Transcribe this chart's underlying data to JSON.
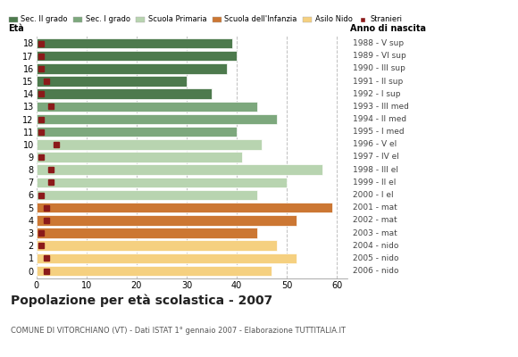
{
  "ages": [
    18,
    17,
    16,
    15,
    14,
    13,
    12,
    11,
    10,
    9,
    8,
    7,
    6,
    5,
    4,
    3,
    2,
    1,
    0
  ],
  "bar_values": [
    39,
    40,
    38,
    30,
    35,
    44,
    48,
    40,
    45,
    41,
    57,
    50,
    44,
    59,
    52,
    44,
    48,
    52,
    47
  ],
  "stranieri_values": [
    1,
    1,
    1,
    2,
    1,
    3,
    1,
    1,
    4,
    1,
    3,
    3,
    1,
    2,
    2,
    1,
    1,
    2,
    2
  ],
  "right_labels": [
    "1988 - V sup",
    "1989 - VI sup",
    "1990 - III sup",
    "1991 - II sup",
    "1992 - I sup",
    "1993 - III med",
    "1994 - II med",
    "1995 - I med",
    "1996 - V el",
    "1997 - IV el",
    "1998 - III el",
    "1999 - II el",
    "2000 - I el",
    "2001 - mat",
    "2002 - mat",
    "2003 - mat",
    "2004 - nido",
    "2005 - nido",
    "2006 - nido"
  ],
  "categories": {
    "Sec. II grado": {
      "ages": [
        18,
        17,
        16,
        15,
        14
      ],
      "color": "#4d7a4d"
    },
    "Sec. I grado": {
      "ages": [
        13,
        12,
        11
      ],
      "color": "#7da87d"
    },
    "Scuola Primaria": {
      "ages": [
        10,
        9,
        8,
        7,
        6
      ],
      "color": "#b8d4b0"
    },
    "Scuola dell'Infanzia": {
      "ages": [
        5,
        4,
        3
      ],
      "color": "#cc7733"
    },
    "Asilo Nido": {
      "ages": [
        2,
        1,
        0
      ],
      "color": "#f5d080"
    }
  },
  "stranieri_color": "#8b1a1a",
  "bg_color": "#ffffff",
  "grid_color": "#c0c0c0",
  "title": "Popolazione per età scolastica - 2007",
  "subtitle": "COMUNE DI VITORCHIANO (VT) - Dati ISTAT 1° gennaio 2007 - Elaborazione TUTTITALIA.IT",
  "xlabel_eta": "Età",
  "xlabel_anno": "Anno di nascita",
  "xlim": [
    0,
    62
  ],
  "xticks": [
    0,
    10,
    20,
    30,
    40,
    50,
    60
  ],
  "bar_height": 0.82,
  "legend_labels": [
    "Sec. II grado",
    "Sec. I grado",
    "Scuola Primaria",
    "Scuola dell'Infanzia",
    "Asilo Nido",
    "Stranieri"
  ]
}
